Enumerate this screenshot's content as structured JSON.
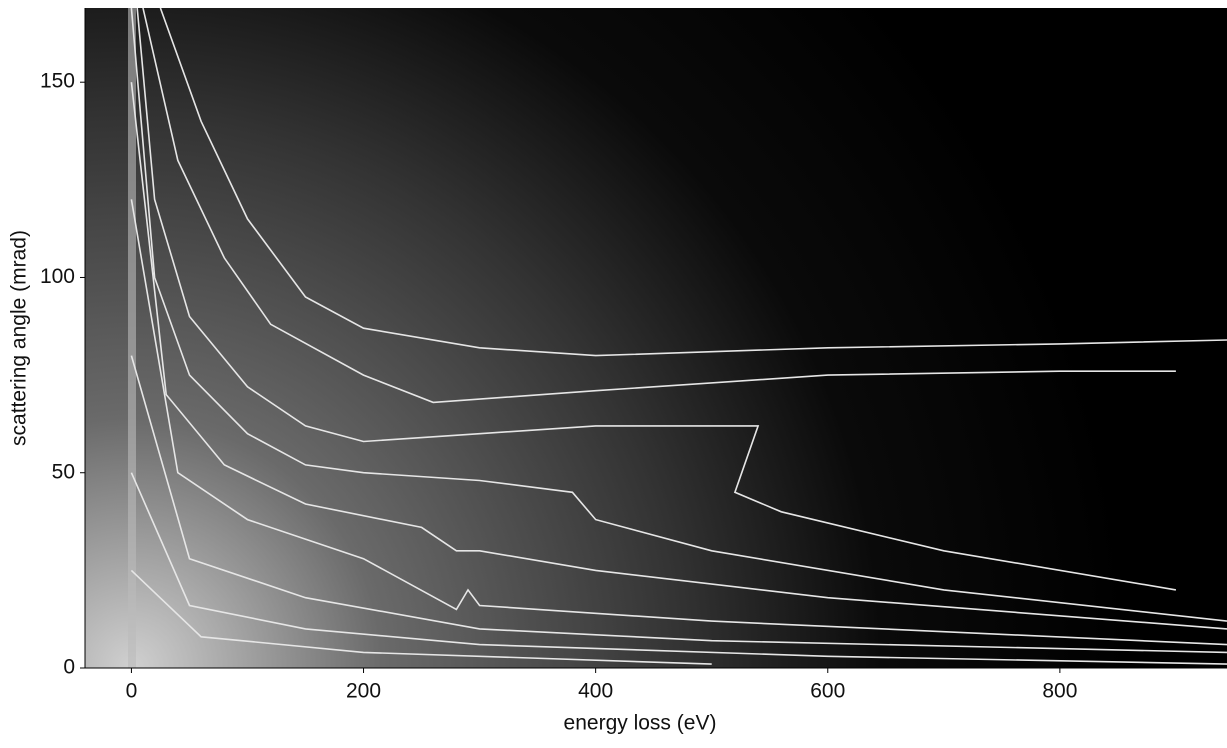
{
  "chart_data": {
    "type": "contour",
    "x_label": "energy loss (eV)",
    "y_label": "scattering angle (mrad)",
    "xlim": [
      -40,
      944
    ],
    "ylim": [
      0,
      169
    ],
    "xticks": [
      0,
      200,
      400,
      600,
      800
    ],
    "yticks": [
      0,
      50,
      100,
      150
    ],
    "grid": false,
    "line_color": "#e6e6e6",
    "series": [
      {
        "x": [
          25,
          60,
          100,
          150,
          200,
          300,
          400,
          600,
          800,
          944
        ],
        "y": [
          169,
          140,
          115,
          95,
          87,
          82,
          80,
          82,
          83,
          84
        ]
      },
      {
        "x": [
          10,
          40,
          80,
          120,
          200,
          260,
          400,
          600,
          800,
          900
        ],
        "y": [
          169,
          130,
          105,
          88,
          75,
          68,
          71,
          75,
          76,
          76
        ]
      },
      {
        "x": [
          5,
          20,
          50,
          100,
          150,
          200,
          300,
          400,
          540,
          520,
          560,
          700,
          900
        ],
        "y": [
          169,
          120,
          90,
          72,
          62,
          58,
          60,
          62,
          62,
          45,
          40,
          30,
          20
        ]
      },
      {
        "x": [
          0,
          20,
          50,
          100,
          150,
          200,
          300,
          380,
          400,
          500,
          700,
          944
        ],
        "y": [
          169,
          100,
          75,
          60,
          52,
          50,
          48,
          45,
          38,
          30,
          20,
          12
        ]
      },
      {
        "x": [
          0,
          30,
          80,
          150,
          250,
          280,
          300,
          400,
          600,
          944
        ],
        "y": [
          150,
          70,
          52,
          42,
          36,
          30,
          30,
          25,
          18,
          10
        ]
      },
      {
        "x": [
          0,
          40,
          100,
          200,
          280,
          290,
          300,
          500,
          944
        ],
        "y": [
          120,
          50,
          38,
          28,
          15,
          20,
          16,
          12,
          6
        ]
      },
      {
        "x": [
          0,
          50,
          150,
          300,
          500,
          944
        ],
        "y": [
          80,
          28,
          18,
          10,
          7,
          4
        ]
      },
      {
        "x": [
          0,
          50,
          150,
          300,
          600,
          944
        ],
        "y": [
          50,
          16,
          10,
          6,
          3,
          1
        ]
      },
      {
        "x": [
          0,
          60,
          200,
          500
        ],
        "y": [
          25,
          8,
          4,
          1
        ]
      }
    ]
  }
}
